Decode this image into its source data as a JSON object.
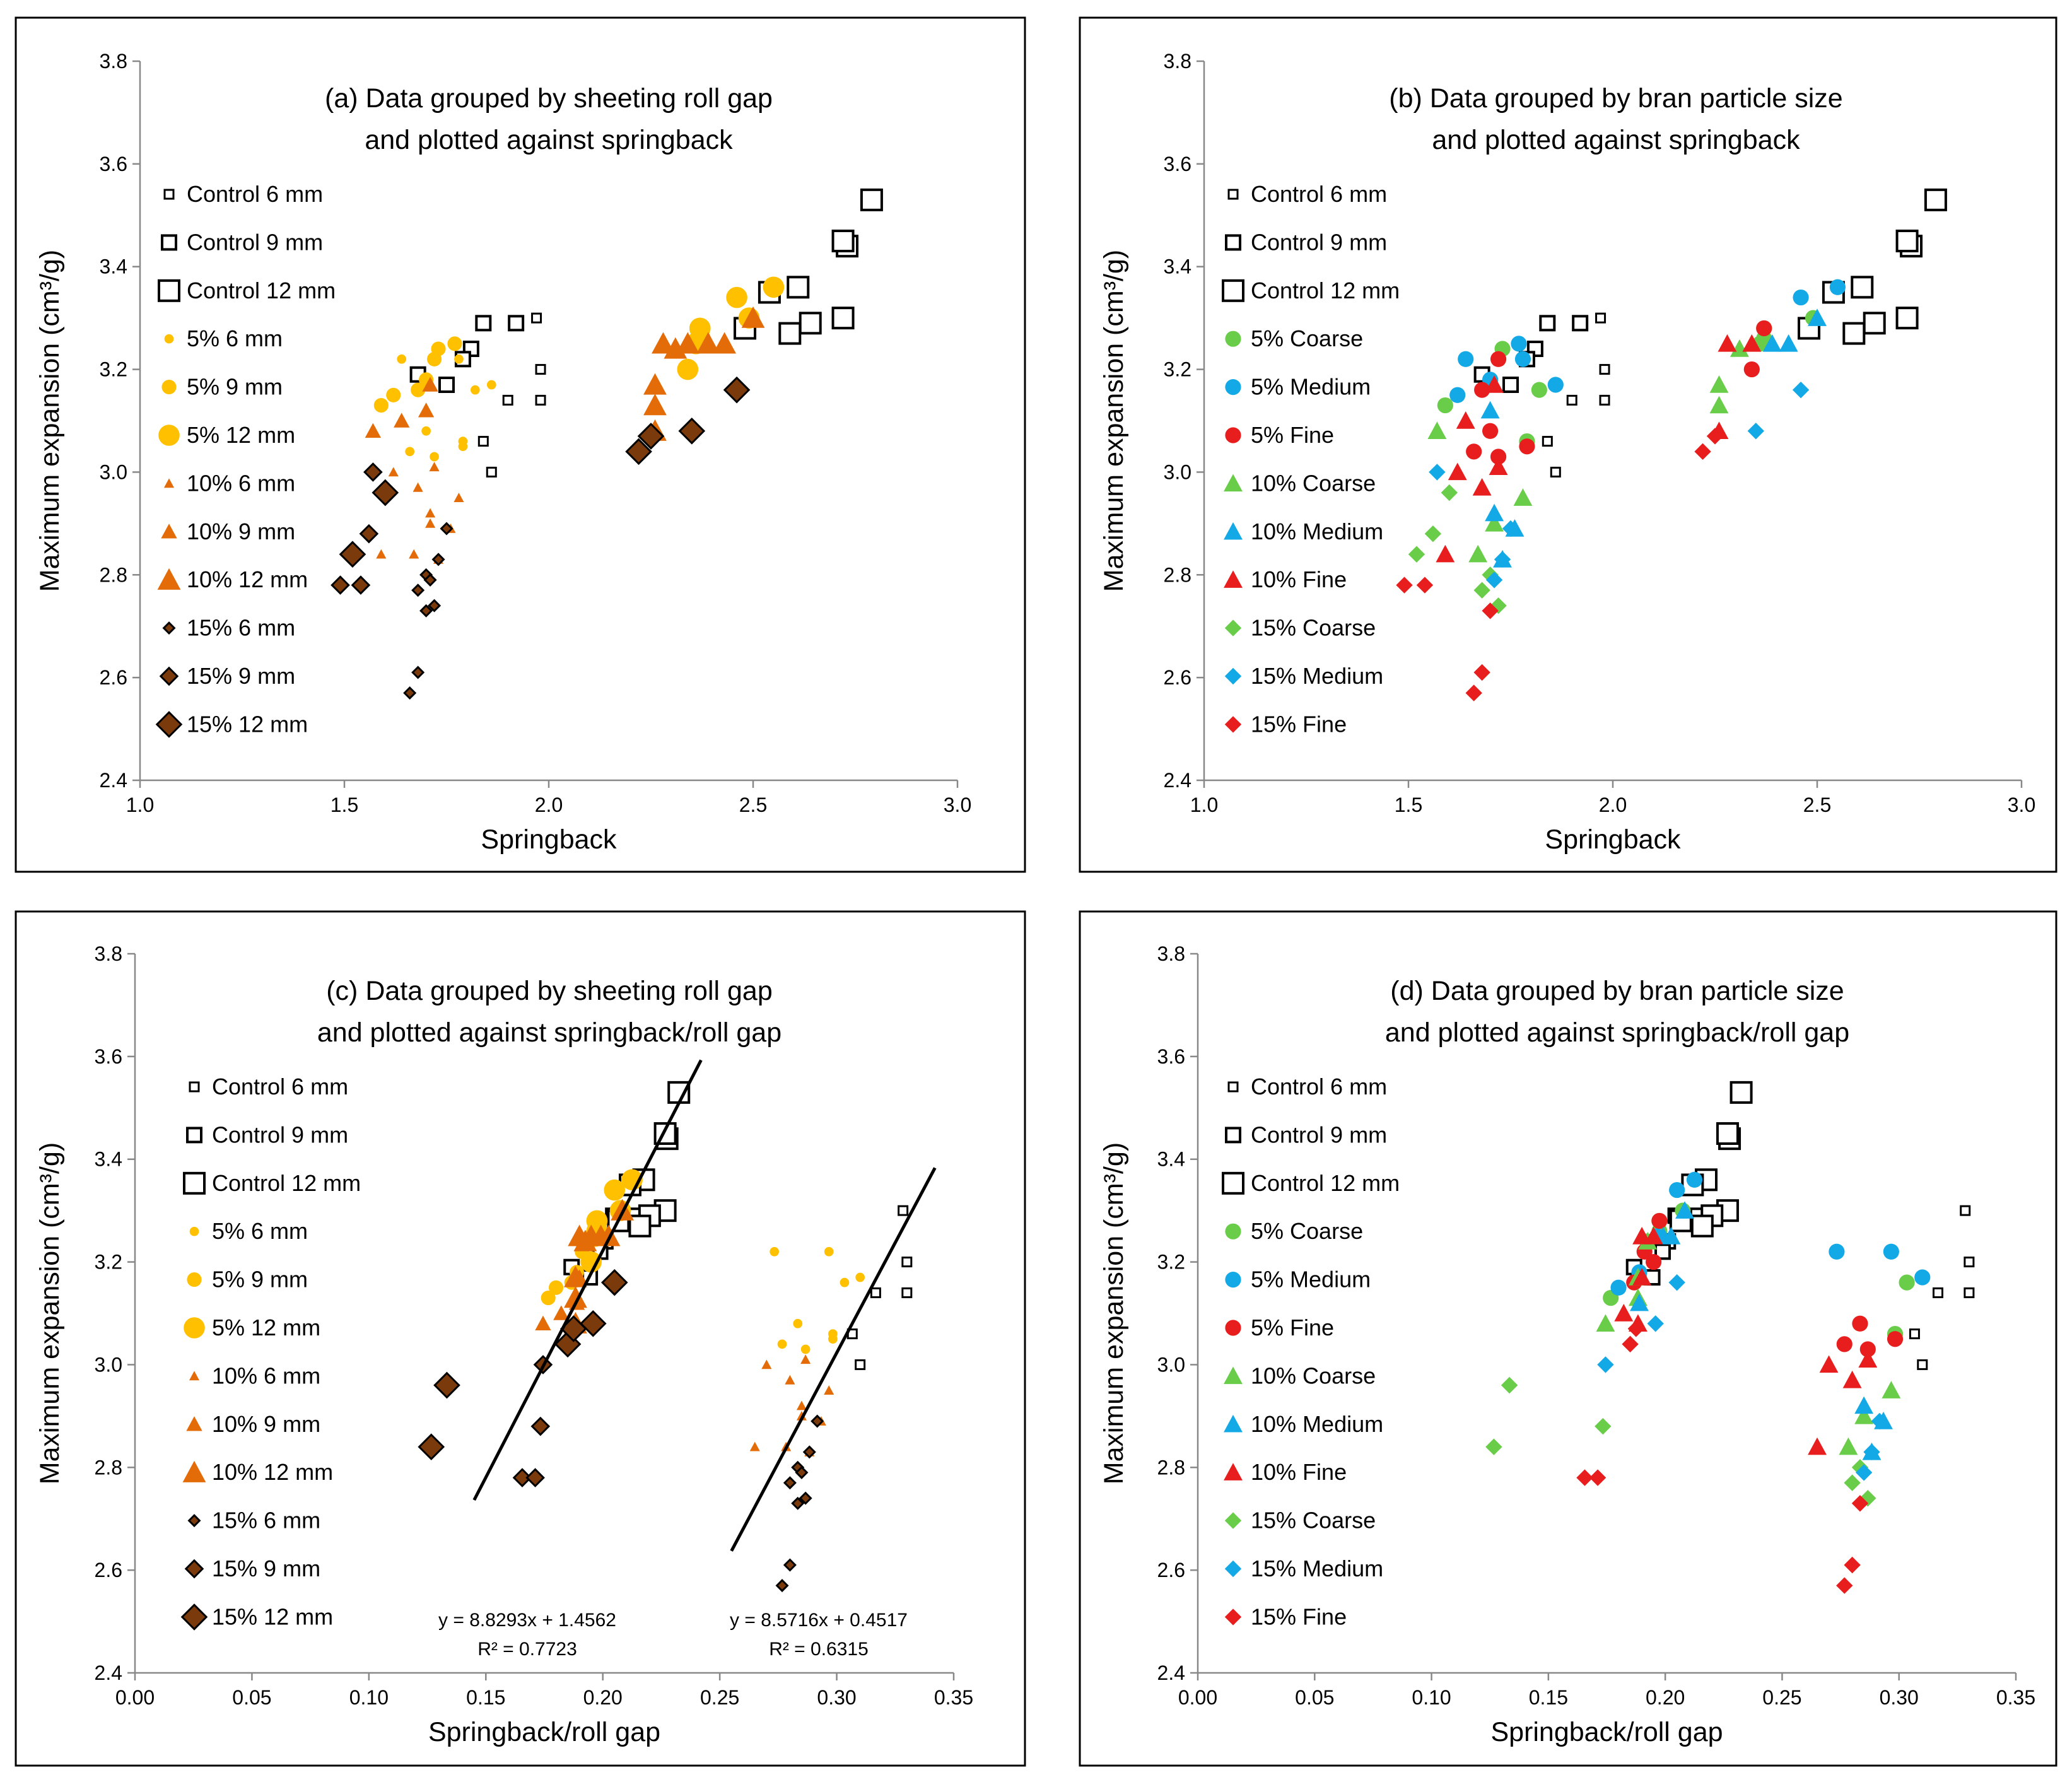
{
  "figure": {
    "y_label": "Maximum expansion (cm³/g)",
    "panels": [
      {
        "id": "a",
        "title_lines": [
          "(a) Data grouped by sheeting roll gap",
          "and plotted against springback"
        ],
        "xlabel": "Springback",
        "legend_type": "gap"
      },
      {
        "id": "b",
        "title_lines": [
          "(b) Data grouped by bran particle size",
          "and plotted against springback"
        ],
        "xlabel": "Springback",
        "legend_type": "size"
      },
      {
        "id": "c",
        "title_lines": [
          "(c) Data grouped by sheeting roll gap",
          "and plotted against springback/roll gap"
        ],
        "xlabel": "Springback/roll gap",
        "legend_type": "gap"
      },
      {
        "id": "d",
        "title_lines": [
          "(d) Data grouped by bran particle size",
          "and plotted against springback/roll gap"
        ],
        "xlabel": "Springback/roll gap",
        "legend_type": "size"
      }
    ]
  },
  "colors": {
    "control": "#ffffff",
    "pct5": "#ffc000",
    "pct10": "#e36c09",
    "pct15": "#7b3a0b",
    "coarse": "#6acd4a",
    "medium": "#13a9e6",
    "fine": "#e81e1e",
    "axis": "#888888",
    "text": "#000000"
  },
  "chart_data": {
    "type": "scatter",
    "y_axis": {
      "label": "Maximum expansion (cm³/g)",
      "ylim": [
        2.4,
        3.8
      ],
      "ticks": [
        "2.4",
        "2.6",
        "2.8",
        "3.0",
        "3.2",
        "3.4",
        "3.6",
        "3.8"
      ]
    },
    "x_axes": {
      "springback": {
        "label": "Springback",
        "xlim": [
          1.0,
          3.0
        ],
        "ticks": [
          "1.0",
          "1.5",
          "2.0",
          "2.5",
          "3.0"
        ]
      },
      "ratio": {
        "label": "Springback/roll gap",
        "xlim": [
          0.0,
          0.35
        ],
        "ticks": [
          "0.00",
          "0.05",
          "0.10",
          "0.15",
          "0.20",
          "0.25",
          "0.30",
          "0.35"
        ]
      }
    },
    "legend_gap": [
      "Control 6 mm",
      "Control 9 mm",
      "Control 12 mm",
      "5% 6 mm",
      "5% 9 mm",
      "5% 12 mm",
      "10% 6 mm",
      "10% 9 mm",
      "10% 12 mm",
      "15% 6 mm",
      "15% 9 mm",
      "15% 12 mm"
    ],
    "legend_size": [
      "Control 6 mm",
      "Control 9 mm",
      "Control 12 mm",
      "5% Coarse",
      "5% Medium",
      "5% Fine",
      "10% Coarse",
      "10% Medium",
      "10% Fine",
      "15% Coarse",
      "15% Medium",
      "15% Fine"
    ],
    "series": [
      {
        "name": "Control 6 mm",
        "level": "control",
        "gap": 6,
        "size": null,
        "springback": [
          1.97,
          1.98,
          1.98,
          1.86,
          1.84,
          1.9
        ],
        "expansion": [
          3.3,
          3.2,
          3.14,
          3.0,
          3.06,
          3.14
        ]
      },
      {
        "name": "Control 9 mm",
        "level": "control",
        "gap": 9,
        "size": null,
        "springback": [
          1.92,
          1.84,
          1.81,
          1.79,
          1.75,
          1.68
        ],
        "expansion": [
          3.29,
          3.29,
          3.24,
          3.22,
          3.17,
          3.19
        ]
      },
      {
        "name": "Control 12 mm",
        "level": "control",
        "gap": 12,
        "size": null,
        "springback": [
          2.79,
          2.73,
          2.72,
          2.72,
          2.64,
          2.61,
          2.59,
          2.54,
          2.48
        ],
        "expansion": [
          3.53,
          3.44,
          3.45,
          3.3,
          3.29,
          3.36,
          3.27,
          3.35,
          3.28
        ]
      },
      {
        "name": "5% Coarse",
        "level": "pct5",
        "size": "coarse",
        "gaps": [
          6,
          6,
          9,
          9,
          12,
          12,
          12,
          12
        ],
        "springback": [
          1.79,
          1.82,
          1.73,
          1.59,
          2.49,
          2.37,
          2.36,
          2.37
        ],
        "expansion": [
          3.06,
          3.16,
          3.24,
          3.13,
          3.3,
          3.28,
          3.25,
          3.26
        ]
      },
      {
        "name": "5% Medium",
        "level": "pct5",
        "size": "medium",
        "gaps": [
          6,
          6,
          6,
          9,
          9,
          9,
          12,
          12
        ],
        "springback": [
          1.86,
          1.78,
          1.64,
          1.77,
          1.7,
          1.62,
          2.55,
          2.46
        ],
        "expansion": [
          3.17,
          3.22,
          3.22,
          3.25,
          3.18,
          3.15,
          3.36,
          3.34
        ]
      },
      {
        "name": "5% Fine",
        "level": "pct5",
        "size": "fine",
        "gaps": [
          6,
          6,
          6,
          6,
          9,
          9,
          12,
          12
        ],
        "springback": [
          1.79,
          1.72,
          1.7,
          1.66,
          1.72,
          1.68,
          2.37,
          2.34
        ],
        "expansion": [
          3.05,
          3.03,
          3.08,
          3.04,
          3.22,
          3.16,
          3.28,
          3.2
        ]
      },
      {
        "name": "10% Coarse",
        "level": "pct10",
        "size": "coarse",
        "gaps": [
          6,
          6,
          6,
          9,
          12,
          12,
          12
        ],
        "springback": [
          1.78,
          1.67,
          1.71,
          1.57,
          2.26,
          2.26,
          2.31
        ],
        "expansion": [
          2.95,
          2.84,
          2.9,
          3.08,
          3.17,
          3.13,
          3.24
        ]
      },
      {
        "name": "10% Medium",
        "level": "pct10",
        "size": "medium",
        "gaps": [
          6,
          6,
          6,
          9,
          12,
          12,
          12
        ],
        "springback": [
          1.71,
          1.76,
          1.73,
          1.7,
          2.5,
          2.43,
          2.39
        ],
        "expansion": [
          2.92,
          2.89,
          2.83,
          3.12,
          3.3,
          3.25,
          3.25
        ]
      },
      {
        "name": "10% Fine",
        "level": "pct10",
        "size": "fine",
        "gaps": [
          6,
          6,
          6,
          6,
          9,
          9,
          12,
          12,
          12
        ],
        "springback": [
          1.72,
          1.68,
          1.62,
          1.59,
          1.71,
          1.64,
          2.26,
          2.28,
          2.34
        ],
        "expansion": [
          3.01,
          2.97,
          3.0,
          2.84,
          3.17,
          3.1,
          3.08,
          3.25,
          3.25
        ]
      },
      {
        "name": "15% Coarse",
        "level": "pct15",
        "size": "coarse",
        "gaps": [
          6,
          6,
          6,
          9,
          12,
          12
        ],
        "springback": [
          1.7,
          1.68,
          1.72,
          1.56,
          1.6,
          1.52
        ],
        "expansion": [
          2.8,
          2.77,
          2.74,
          2.88,
          2.96,
          2.84
        ]
      },
      {
        "name": "15% Medium",
        "level": "pct15",
        "size": "medium",
        "gaps": [
          6,
          6,
          6,
          9,
          12,
          12
        ],
        "springback": [
          1.73,
          1.71,
          1.75,
          1.57,
          2.46,
          2.35
        ],
        "expansion": [
          2.83,
          2.79,
          2.89,
          3.0,
          3.16,
          3.08
        ]
      },
      {
        "name": "15% Fine",
        "level": "pct15",
        "size": "fine",
        "gaps": [
          6,
          6,
          6,
          9,
          9,
          12,
          12
        ],
        "springback": [
          1.68,
          1.66,
          1.7,
          1.49,
          1.54,
          2.22,
          2.25
        ],
        "expansion": [
          2.61,
          2.57,
          2.73,
          2.78,
          2.78,
          3.04,
          3.07
        ]
      }
    ],
    "trendlines": [
      {
        "label": "y = 8.8293x + 1.4562",
        "r2": "R² = 0.7723",
        "slope": 8.8293,
        "intercept": 1.4562,
        "x_range": [
          0.145,
          0.242
        ]
      },
      {
        "label": "y = 8.5716x + 0.4517",
        "r2": "R² = 0.6315",
        "slope": 8.5716,
        "intercept": 0.4517,
        "x_range": [
          0.255,
          0.342
        ]
      }
    ]
  }
}
